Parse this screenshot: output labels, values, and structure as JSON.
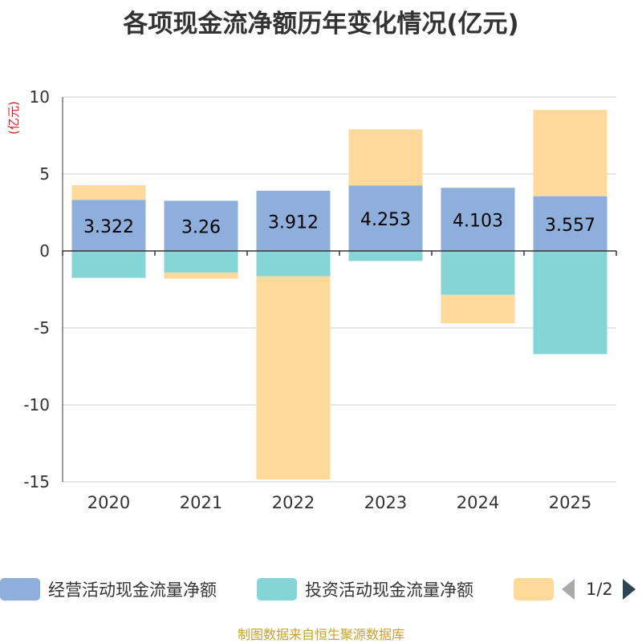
{
  "chart_data": {
    "type": "bar",
    "stacked": true,
    "title": "各项现金流净额历年变化情况(亿元)",
    "ylabel": "(亿元)",
    "xlabel": "",
    "ylim": [
      -15,
      10
    ],
    "yticks": [
      10,
      5,
      0,
      -5,
      -10,
      -15
    ],
    "categories": [
      "2020",
      "2021",
      "2022",
      "2023",
      "2024",
      "2025"
    ],
    "series": [
      {
        "name": "经营活动现金流量净额",
        "color": "#8eaedb",
        "values": [
          3.322,
          3.26,
          3.912,
          4.253,
          4.103,
          3.557
        ],
        "labels": [
          "3.322",
          "3.26",
          "3.912",
          "4.253",
          "4.103",
          "3.557"
        ]
      },
      {
        "name": "投资活动现金流量净额",
        "color": "#85d5d6",
        "values": [
          -1.75,
          -1.4,
          -1.65,
          -0.65,
          -2.85,
          -6.7
        ]
      },
      {
        "name": "",
        "color": "#fed999",
        "values": [
          0.95,
          -0.4,
          -13.2,
          3.65,
          -1.85,
          5.6
        ]
      }
    ],
    "legend": {
      "position": "bottom",
      "page": "1/2"
    }
  },
  "source": "制图数据来自恒生聚源数据库"
}
